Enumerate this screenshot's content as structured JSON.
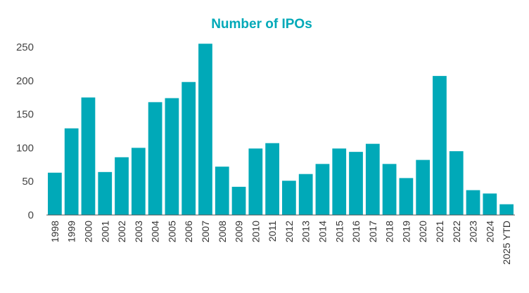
{
  "colors": {
    "bar": "#00A9B8",
    "title": "#00A9B8",
    "axis": "#555555",
    "text": "#333333"
  },
  "chart_data": {
    "type": "bar",
    "title": "Number of IPOs",
    "xlabel": "",
    "ylabel": "",
    "ylim": [
      0,
      250
    ],
    "yticks": [
      "0",
      "50",
      "100",
      "150",
      "200",
      "250"
    ],
    "grid": false,
    "categories": [
      "1998",
      "1999",
      "2000",
      "2001",
      "2002",
      "2003",
      "2004",
      "2005",
      "2006",
      "2007",
      "2008",
      "2009",
      "2010",
      "2011",
      "2012",
      "2013",
      "2014",
      "2015",
      "2016",
      "2017",
      "2018",
      "2019",
      "2020",
      "2021",
      "2022",
      "2023",
      "2024",
      "2025 YTD"
    ],
    "values": [
      63,
      129,
      175,
      64,
      86,
      100,
      168,
      174,
      198,
      255,
      72,
      42,
      99,
      107,
      51,
      61,
      76,
      99,
      94,
      106,
      76,
      55,
      82,
      207,
      95,
      37,
      32,
      16
    ]
  }
}
